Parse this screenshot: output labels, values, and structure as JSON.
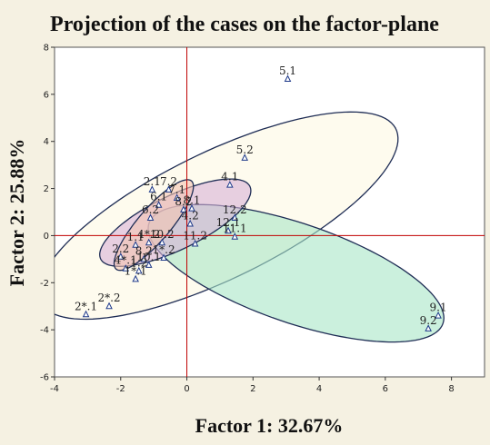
{
  "chart_data": {
    "type": "scatter",
    "title": "Projection of the cases on the factor-plane",
    "xlabel": "Factor 1: 32.67%",
    "ylabel": "Factor 2: 25.88%",
    "xlim": [
      -4,
      9
    ],
    "ylim": [
      -6,
      8
    ],
    "xticks": [
      -4,
      -2,
      0,
      2,
      4,
      6,
      8
    ],
    "yticks": [
      -6,
      -4,
      -2,
      0,
      2,
      4,
      6,
      8
    ],
    "grid": false,
    "reference_lines": {
      "x": 0,
      "y": 0,
      "color": "#c00000"
    },
    "points": [
      {
        "label": "5.1",
        "x": 3.05,
        "y": 6.65
      },
      {
        "label": "5.2",
        "x": 1.75,
        "y": 3.3
      },
      {
        "label": "4.1",
        "x": 1.3,
        "y": 2.15
      },
      {
        "label": "2.1",
        "x": -1.05,
        "y": 1.95
      },
      {
        "label": "7.2",
        "x": -0.55,
        "y": 1.95
      },
      {
        "label": "6.1",
        "x": -0.85,
        "y": 1.3
      },
      {
        "label": "7.1",
        "x": -0.3,
        "y": 1.6
      },
      {
        "label": "8.2",
        "x": -0.1,
        "y": 1.1
      },
      {
        "label": "8.1",
        "x": 0.15,
        "y": 1.15
      },
      {
        "label": "6.2",
        "x": -1.1,
        "y": 0.75
      },
      {
        "label": "4.2",
        "x": 0.1,
        "y": 0.5
      },
      {
        "label": "12.2",
        "x": 1.45,
        "y": 0.75
      },
      {
        "label": "12.1",
        "x": 1.25,
        "y": 0.2
      },
      {
        "label": "11.1",
        "x": 1.45,
        "y": -0.05
      },
      {
        "label": "11.2",
        "x": 0.25,
        "y": -0.35
      },
      {
        "label": "10.2",
        "x": -0.75,
        "y": -0.3
      },
      {
        "label": "1.1",
        "x": -1.55,
        "y": -0.4
      },
      {
        "label": "4*.2",
        "x": -1.15,
        "y": -0.3
      },
      {
        "label": "2.2",
        "x": -2.0,
        "y": -0.9
      },
      {
        "label": "8.2",
        "x": -1.3,
        "y": -1.0
      },
      {
        "label": "1*.2",
        "x": -0.7,
        "y": -0.95
      },
      {
        "label": "4*.1",
        "x": -1.85,
        "y": -1.4
      },
      {
        "label": "1.2",
        "x": -1.45,
        "y": -1.5
      },
      {
        "label": "10.1",
        "x": -1.15,
        "y": -1.25
      },
      {
        "label": "1*.1",
        "x": -1.55,
        "y": -1.85
      },
      {
        "label": "2*.1",
        "x": -3.05,
        "y": -3.35
      },
      {
        "label": "2*.2",
        "x": -2.35,
        "y": -3.0
      },
      {
        "label": "9.1",
        "x": 7.6,
        "y": -3.4
      },
      {
        "label": "9.2",
        "x": 7.3,
        "y": -3.95
      }
    ],
    "ellipses": [
      {
        "cx": 0.95,
        "cy": 0.85,
        "rx": 6.55,
        "ry": 2.45,
        "angle_deg": 37,
        "fill": "#fdf8e3",
        "stroke": "#1f2d55"
      },
      {
        "cx": 3.3,
        "cy": -1.6,
        "rx": 4.95,
        "ry": 2.0,
        "angle_deg": -28,
        "fill": "#a8e6c6",
        "stroke": "#1f2d55"
      },
      {
        "cx": -0.35,
        "cy": 0.55,
        "rx": 2.75,
        "ry": 1.05,
        "angle_deg": 37,
        "fill": "#d7b2d7",
        "stroke": "#1f2d55"
      },
      {
        "cx": -1.0,
        "cy": 0.45,
        "rx": 2.2,
        "ry": 0.55,
        "angle_deg": 60,
        "fill": "#f4c4b2",
        "stroke": "#1f2d55"
      }
    ]
  }
}
